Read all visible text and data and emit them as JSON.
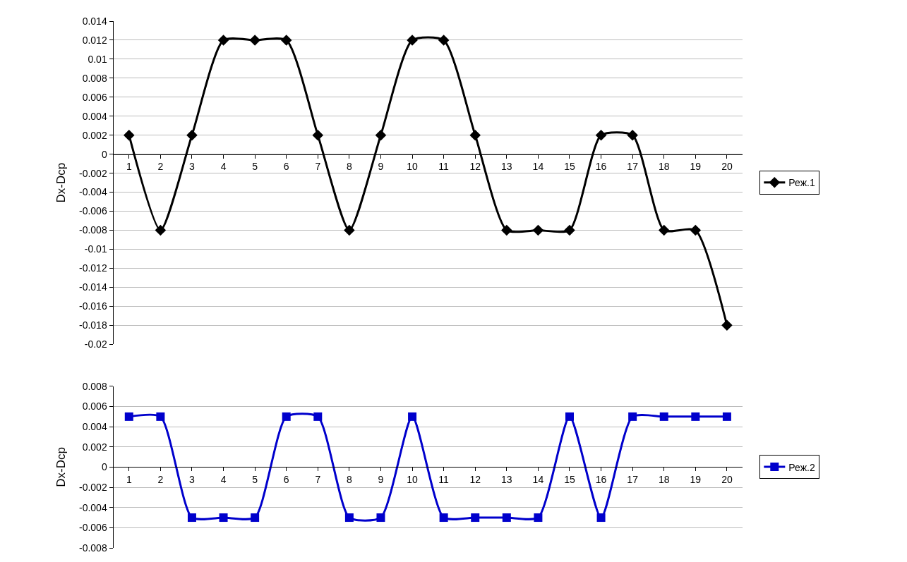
{
  "chart_data": [
    {
      "type": "line",
      "ylabel": "Dx-Dcp",
      "x": [
        1,
        2,
        3,
        4,
        5,
        6,
        7,
        8,
        9,
        10,
        11,
        12,
        13,
        14,
        15,
        16,
        17,
        18,
        19,
        20
      ],
      "series": [
        {
          "name": "Реж.1",
          "color": "#000000",
          "values": [
            0.002,
            -0.008,
            0.002,
            0.012,
            0.012,
            0.012,
            0.002,
            -0.008,
            0.002,
            0.012,
            0.012,
            0.002,
            -0.008,
            -0.008,
            -0.008,
            0.002,
            0.002,
            -0.008,
            -0.008,
            -0.018
          ]
        }
      ],
      "xlim": [
        0.5,
        20.5
      ],
      "xticks": [
        1,
        2,
        3,
        4,
        5,
        6,
        7,
        8,
        9,
        10,
        11,
        12,
        13,
        14,
        15,
        16,
        17,
        18,
        19,
        20
      ],
      "ylim": [
        -0.02,
        0.014
      ],
      "yticks": [
        -0.02,
        -0.018,
        -0.016,
        -0.014,
        -0.012,
        -0.01,
        -0.008,
        -0.006,
        -0.004,
        -0.002,
        0,
        0.002,
        0.004,
        0.006,
        0.008,
        0.01,
        0.012,
        0.014
      ],
      "grid": "y",
      "legend": "right",
      "marker": "diamond",
      "line_style": "solid"
    },
    {
      "type": "line",
      "ylabel": "Dx-Dcp",
      "x": [
        1,
        2,
        3,
        4,
        5,
        6,
        7,
        8,
        9,
        10,
        11,
        12,
        13,
        14,
        15,
        16,
        17,
        18,
        19,
        20
      ],
      "series": [
        {
          "name": "Реж.2",
          "color": "#0000cc",
          "values": [
            0.005,
            0.005,
            -0.005,
            -0.005,
            -0.005,
            0.005,
            0.005,
            -0.005,
            -0.005,
            0.005,
            -0.005,
            -0.005,
            -0.005,
            -0.005,
            0.005,
            -0.005,
            0.005,
            0.005,
            0.005,
            0.005
          ]
        }
      ],
      "xlim": [
        0.5,
        20.5
      ],
      "xticks": [
        1,
        2,
        3,
        4,
        5,
        6,
        7,
        8,
        9,
        10,
        11,
        12,
        13,
        14,
        15,
        16,
        17,
        18,
        19,
        20
      ],
      "ylim": [
        -0.008,
        0.008
      ],
      "yticks": [
        -0.008,
        -0.006,
        -0.004,
        -0.002,
        0,
        0.002,
        0.004,
        0.006,
        0.008
      ],
      "grid": "y",
      "legend": "right",
      "marker": "square",
      "line_style": "solid"
    }
  ]
}
